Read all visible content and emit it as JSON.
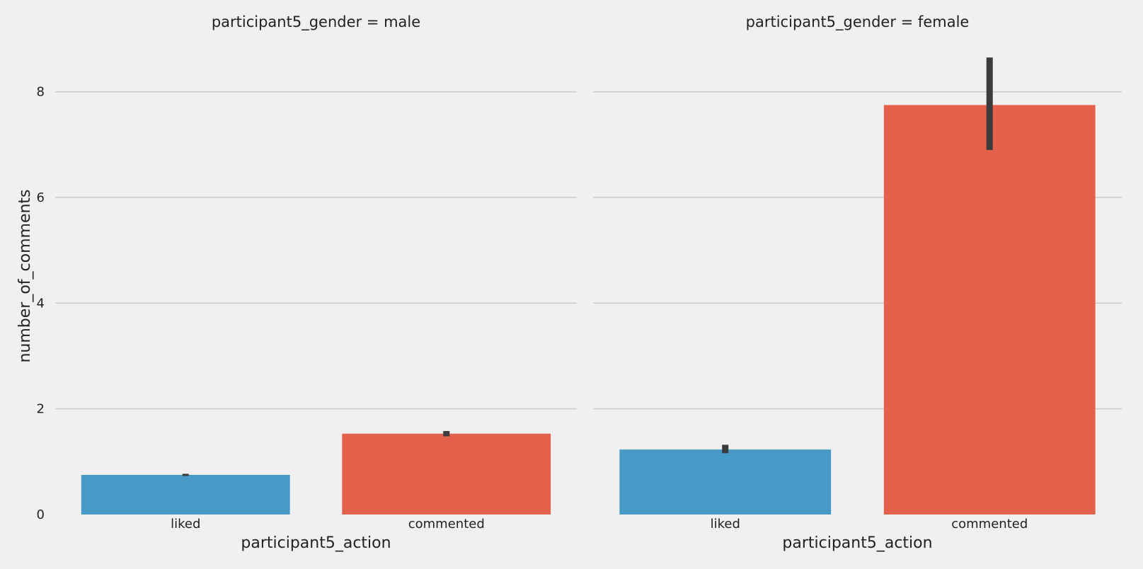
{
  "chart_data": {
    "type": "bar",
    "ylabel": "number_of_comments",
    "ylim": [
      0,
      8.8
    ],
    "yticks": [
      0,
      2,
      4,
      6,
      8
    ],
    "grid": true,
    "colors": {
      "liked": "#479ac7",
      "commented": "#e3614a",
      "errorbar": "#3c3c3c",
      "grid": "#cbcbcb",
      "background": "#f0f0f0"
    },
    "panels": [
      {
        "title": "participant5_gender = male",
        "xlabel": "participant5_action",
        "categories": [
          "liked",
          "commented"
        ],
        "values": [
          0.75,
          1.53
        ],
        "ci_low": [
          0.73,
          1.48
        ],
        "ci_high": [
          0.77,
          1.58
        ]
      },
      {
        "title": "participant5_gender = female",
        "xlabel": "participant5_action",
        "categories": [
          "liked",
          "commented"
        ],
        "values": [
          1.23,
          7.75
        ],
        "ci_low": [
          1.16,
          6.9
        ],
        "ci_high": [
          1.32,
          8.65
        ]
      }
    ]
  }
}
